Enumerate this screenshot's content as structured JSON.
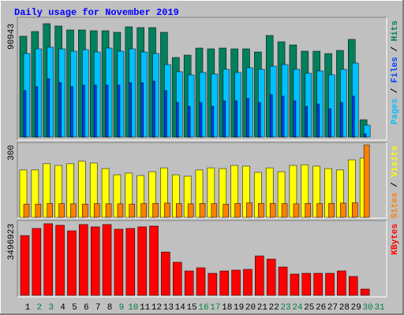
{
  "chart_data": [
    {
      "type": "bar",
      "title": "Daily usage for November 2019",
      "ylim": [
        0,
        90943
      ],
      "yticks": [
        90943
      ],
      "separator": "/",
      "series": [
        {
          "name": "Pages",
          "color": "#00c0ff",
          "values": [
            66944,
            70733,
            71997,
            70733,
            68839,
            70102,
            68207,
            71365,
            68839,
            70733,
            68207,
            66944,
            58102,
            52419,
            49892,
            51787,
            50524,
            54313,
            51787,
            55576,
            54313,
            56839,
            58102,
            54313,
            51156,
            53050,
            49892,
            54313,
            59366,
            9473,
            0
          ]
        },
        {
          "name": "Files",
          "color": "#0040ff",
          "values": [
            37261,
            40419,
            46735,
            43577,
            40419,
            41682,
            41682,
            41682,
            41682,
            43577,
            43577,
            44840,
            37261,
            27788,
            24630,
            27788,
            24630,
            29051,
            29051,
            30946,
            27788,
            34103,
            32840,
            29051,
            24630,
            26525,
            22736,
            27788,
            32840,
            2526,
            0
          ]
        },
        {
          "name": "Hits",
          "color": "#00805c",
          "values": [
            80838,
            84627,
            90943,
            89048,
            85890,
            85890,
            85259,
            85259,
            83996,
            88417,
            87785,
            87785,
            83996,
            63787,
            65681,
            71365,
            70733,
            71365,
            70733,
            70733,
            68207,
            81470,
            76417,
            73891,
            68839,
            68839,
            66944,
            69470,
            78312,
            13894,
            0
          ]
        }
      ]
    },
    {
      "type": "bar",
      "ylim": [
        0,
        300
      ],
      "yticks": [
        300
      ],
      "separator": "/",
      "series": [
        {
          "name": "Sites",
          "color": "#ff8000",
          "values": [
            55,
            55,
            58,
            57,
            56,
            55,
            57,
            56,
            56,
            55,
            57,
            58,
            59,
            57,
            56,
            58,
            57,
            55,
            58,
            60,
            58,
            58,
            57,
            56,
            58,
            57,
            58,
            59,
            60,
            300,
            0
          ]
        },
        {
          "name": "Visits",
          "color": "#ffff00",
          "values": [
            196,
            196,
            222,
            215,
            222,
            232,
            225,
            202,
            176,
            183,
            173,
            189,
            205,
            176,
            170,
            196,
            205,
            202,
            215,
            212,
            186,
            205,
            189,
            215,
            218,
            212,
            202,
            196,
            238,
            245,
            0
          ]
        }
      ]
    },
    {
      "type": "bar",
      "ylim": [
        0,
        3496923
      ],
      "yticks": [
        3496923
      ],
      "categories": [
        "1",
        "2",
        "3",
        "4",
        "5",
        "6",
        "7",
        "8",
        "9",
        "10",
        "11",
        "12",
        "13",
        "14",
        "15",
        "16",
        "17",
        "18",
        "19",
        "20",
        "21",
        "22",
        "23",
        "24",
        "25",
        "26",
        "27",
        "28",
        "29",
        "30",
        "31"
      ],
      "category_colors": [
        "#000000",
        "#008040",
        "#008040",
        "#000000",
        "#000000",
        "#000000",
        "#000000",
        "#000000",
        "#008040",
        "#008040",
        "#000000",
        "#000000",
        "#000000",
        "#000000",
        "#000000",
        "#008040",
        "#008040",
        "#000000",
        "#000000",
        "#000000",
        "#000000",
        "#000000",
        "#008040",
        "#008040",
        "#000000",
        "#000000",
        "#000000",
        "#000000",
        "#000000",
        "#008040",
        "#008040"
      ],
      "series": [
        {
          "name": "KBytes",
          "color": "#ff0000",
          "values": [
            2919000,
            3265000,
            3496923,
            3420000,
            3150000,
            3458000,
            3343000,
            3458000,
            3227000,
            3265000,
            3343000,
            3381000,
            2113000,
            1614000,
            1191000,
            1345000,
            1076000,
            1191000,
            1230000,
            1268000,
            1922000,
            1768000,
            1383000,
            1038000,
            1076000,
            1076000,
            1076000,
            1191000,
            922000,
            307000,
            0
          ]
        }
      ]
    }
  ]
}
